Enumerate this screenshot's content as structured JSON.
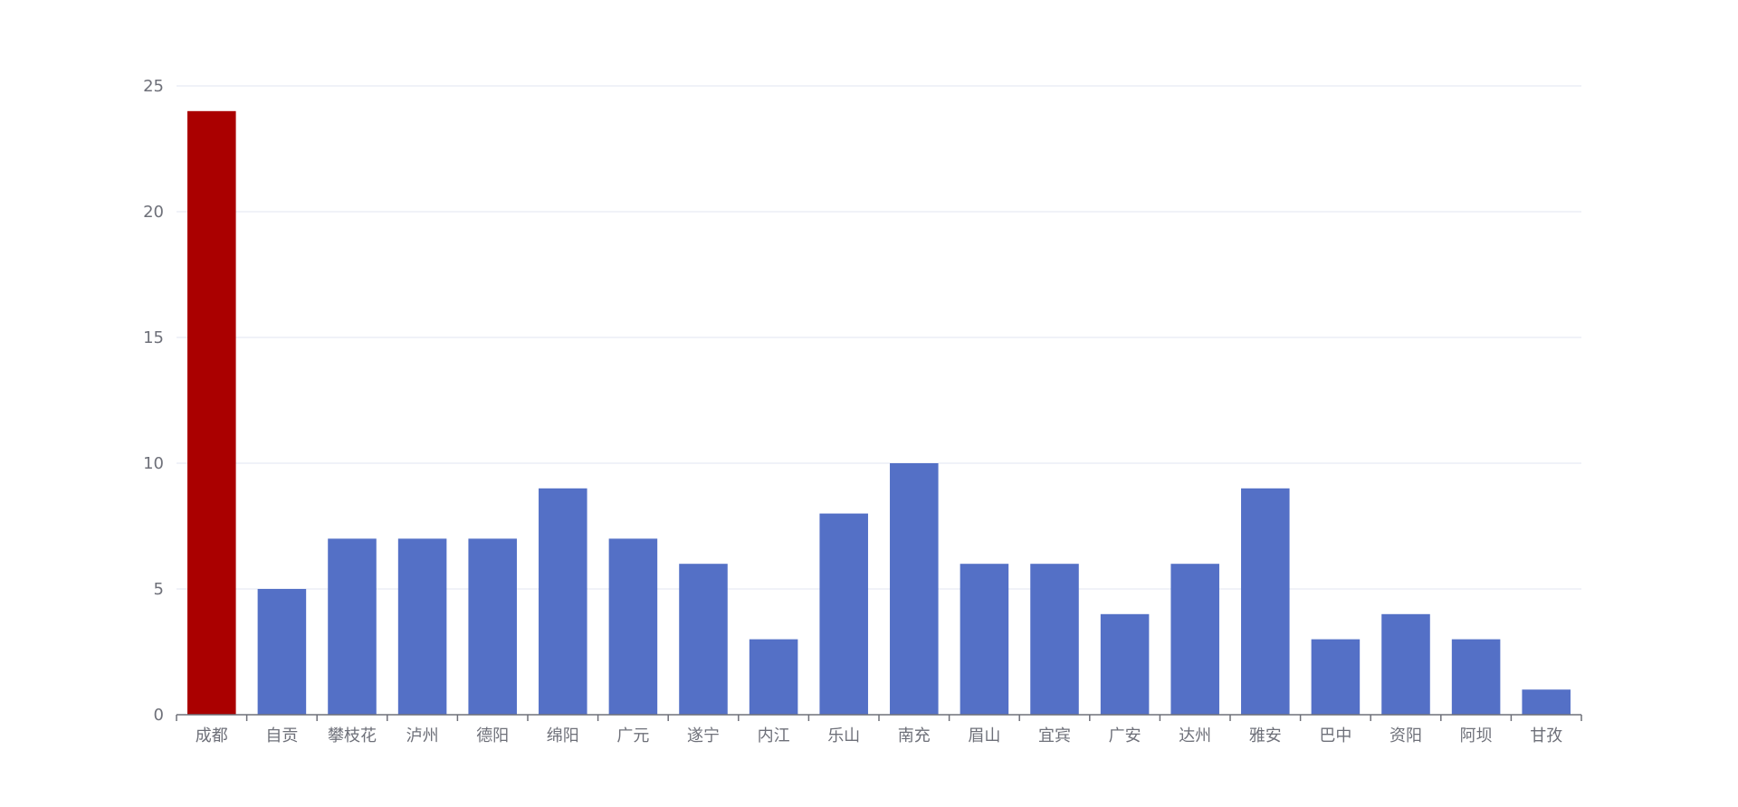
{
  "chart_data": {
    "type": "bar",
    "categories": [
      "成都",
      "自贡",
      "攀枝花",
      "泸州",
      "德阳",
      "绵阳",
      "广元",
      "遂宁",
      "内江",
      "乐山",
      "南充",
      "眉山",
      "宜宾",
      "广安",
      "达州",
      "雅安",
      "巴中",
      "资阳",
      "阿坝",
      "甘孜"
    ],
    "values": [
      24,
      5,
      7,
      7,
      7,
      9,
      7,
      6,
      3,
      8,
      10,
      6,
      6,
      4,
      6,
      9,
      3,
      4,
      3,
      1
    ],
    "highlight_index": 0,
    "ylim": [
      0,
      25
    ],
    "yticks": [
      0,
      5,
      10,
      15,
      20,
      25
    ],
    "grid": true,
    "colors": {
      "bar": "#5470c6",
      "highlight": "#aa0000",
      "grid": "#e0e6f1",
      "axis": "#6e7079",
      "label": "#6e7079"
    }
  }
}
